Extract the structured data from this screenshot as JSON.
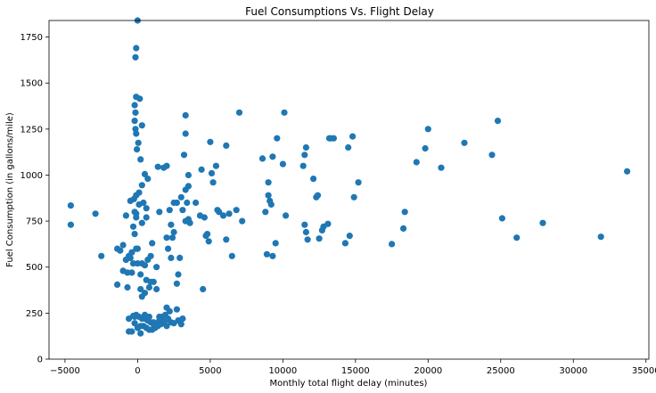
{
  "chart_data": {
    "type": "scatter",
    "title": "Fuel Consumptions Vs. Flight Delay",
    "xlabel": "Monthly total flight delay (minutes)",
    "ylabel": "Fuel Consumption (in gallons/mile)",
    "xlim": [
      -6100,
      35200
    ],
    "ylim": [
      0,
      1840
    ],
    "xticks": [
      -5000,
      0,
      5000,
      10000,
      15000,
      20000,
      25000,
      30000,
      35000
    ],
    "yticks": [
      0,
      250,
      500,
      750,
      1000,
      1250,
      1500,
      1750
    ],
    "xtick_labels": [
      "−5000",
      "0",
      "5000",
      "10000",
      "15000",
      "20000",
      "25000",
      "30000",
      "35000"
    ],
    "ytick_labels": [
      "0",
      "250",
      "500",
      "750",
      "1000",
      "1250",
      "1500",
      "1750"
    ],
    "grid": false,
    "marker_color": "#1f77b4",
    "points": [
      [
        0,
        1840
      ],
      [
        -100,
        1690
      ],
      [
        -150,
        1640
      ],
      [
        -100,
        1425
      ],
      [
        150,
        1415
      ],
      [
        -200,
        1380
      ],
      [
        -150,
        1340
      ],
      [
        -200,
        1295
      ],
      [
        300,
        1270
      ],
      [
        -150,
        1250
      ],
      [
        -100,
        1225
      ],
      [
        50,
        1175
      ],
      [
        -50,
        1140
      ],
      [
        200,
        1085
      ],
      [
        500,
        1005
      ],
      [
        700,
        980
      ],
      [
        300,
        945
      ],
      [
        100,
        905
      ],
      [
        -100,
        890
      ],
      [
        400,
        850
      ],
      [
        -250,
        870
      ],
      [
        -500,
        860
      ],
      [
        100,
        840
      ],
      [
        600,
        820
      ],
      [
        -200,
        800
      ],
      [
        -100,
        790
      ],
      [
        -100,
        770
      ],
      [
        -800,
        780
      ],
      [
        600,
        770
      ],
      [
        300,
        740
      ],
      [
        -300,
        720
      ],
      [
        -200,
        680
      ],
      [
        1000,
        630
      ],
      [
        -100,
        600
      ],
      [
        -400,
        580
      ],
      [
        -1400,
        600
      ],
      [
        -1200,
        590
      ],
      [
        -800,
        540
      ],
      [
        -600,
        560
      ],
      [
        -500,
        550
      ],
      [
        -300,
        520
      ],
      [
        0,
        520
      ],
      [
        300,
        520
      ],
      [
        500,
        510
      ],
      [
        700,
        540
      ],
      [
        900,
        560
      ],
      [
        1300,
        500
      ],
      [
        -700,
        470
      ],
      [
        -400,
        470
      ],
      [
        200,
        460
      ],
      [
        600,
        430
      ],
      [
        900,
        420
      ],
      [
        1100,
        420
      ],
      [
        1300,
        380
      ],
      [
        -700,
        390
      ],
      [
        -1400,
        405
      ],
      [
        -1000,
        480
      ],
      [
        200,
        380
      ],
      [
        500,
        360
      ],
      [
        800,
        390
      ],
      [
        300,
        340
      ],
      [
        -100,
        240
      ],
      [
        100,
        230
      ],
      [
        300,
        220
      ],
      [
        500,
        220
      ],
      [
        700,
        210
      ],
      [
        900,
        200
      ],
      [
        1100,
        200
      ],
      [
        1300,
        190
      ],
      [
        1500,
        210
      ],
      [
        1700,
        230
      ],
      [
        1900,
        240
      ],
      [
        2100,
        220
      ],
      [
        2300,
        200
      ],
      [
        2500,
        195
      ],
      [
        2800,
        210
      ],
      [
        3100,
        220
      ],
      [
        200,
        180
      ],
      [
        400,
        180
      ],
      [
        600,
        170
      ],
      [
        800,
        160
      ],
      [
        1000,
        160
      ],
      [
        1200,
        170
      ],
      [
        1400,
        180
      ],
      [
        1600,
        190
      ],
      [
        1800,
        200
      ],
      [
        2000,
        180
      ],
      [
        -200,
        195
      ],
      [
        0,
        170
      ],
      [
        200,
        140
      ],
      [
        -400,
        150
      ],
      [
        -600,
        220
      ],
      [
        -300,
        235
      ],
      [
        -600,
        150
      ],
      [
        -200,
        230
      ],
      [
        500,
        240
      ],
      [
        1100,
        190
      ],
      [
        2000,
        215
      ],
      [
        3000,
        190
      ],
      [
        2700,
        270
      ],
      [
        2200,
        260
      ],
      [
        2000,
        280
      ],
      [
        1500,
        230
      ],
      [
        800,
        230
      ],
      [
        -2500,
        560
      ],
      [
        -2900,
        790
      ],
      [
        -4600,
        730
      ],
      [
        -4600,
        835
      ],
      [
        -1000,
        620
      ],
      [
        -800,
        540
      ],
      [
        0,
        600
      ],
      [
        1400,
        1045
      ],
      [
        1800,
        1040
      ],
      [
        1500,
        800
      ],
      [
        2000,
        1050
      ],
      [
        2200,
        810
      ],
      [
        2300,
        730
      ],
      [
        2400,
        660
      ],
      [
        2500,
        690
      ],
      [
        2500,
        850
      ],
      [
        2700,
        850
      ],
      [
        2800,
        460
      ],
      [
        3000,
        880
      ],
      [
        3200,
        1110
      ],
      [
        3300,
        1325
      ],
      [
        3300,
        1225
      ],
      [
        3300,
        920
      ],
      [
        3400,
        850
      ],
      [
        3500,
        760
      ],
      [
        3600,
        740
      ],
      [
        3100,
        810
      ],
      [
        3300,
        750
      ],
      [
        3500,
        940
      ],
      [
        3500,
        1000
      ],
      [
        4000,
        850
      ],
      [
        4300,
        780
      ],
      [
        4400,
        1030
      ],
      [
        4600,
        770
      ],
      [
        4500,
        380
      ],
      [
        4800,
        680
      ],
      [
        5100,
        1010
      ],
      [
        5000,
        1180
      ],
      [
        5200,
        960
      ],
      [
        5400,
        1050
      ],
      [
        5500,
        810
      ],
      [
        5600,
        800
      ],
      [
        5900,
        780
      ],
      [
        6100,
        1160
      ],
      [
        6100,
        650
      ],
      [
        6300,
        790
      ],
      [
        6500,
        560
      ],
      [
        6800,
        810
      ],
      [
        7000,
        1340
      ],
      [
        7200,
        750
      ],
      [
        4900,
        640
      ],
      [
        4700,
        670
      ],
      [
        2900,
        550
      ],
      [
        2700,
        410
      ],
      [
        2100,
        600
      ],
      [
        2000,
        660
      ],
      [
        2300,
        550
      ],
      [
        8600,
        1090
      ],
      [
        8800,
        800
      ],
      [
        8900,
        570
      ],
      [
        9000,
        890
      ],
      [
        9000,
        960
      ],
      [
        9100,
        860
      ],
      [
        9200,
        840
      ],
      [
        9300,
        1100
      ],
      [
        9300,
        560
      ],
      [
        9500,
        630
      ],
      [
        9600,
        1200
      ],
      [
        10000,
        1060
      ],
      [
        10100,
        1340
      ],
      [
        10200,
        780
      ],
      [
        11400,
        1050
      ],
      [
        11500,
        1110
      ],
      [
        11600,
        1150
      ],
      [
        11500,
        730
      ],
      [
        11600,
        690
      ],
      [
        11700,
        650
      ],
      [
        12100,
        980
      ],
      [
        12300,
        880
      ],
      [
        12400,
        890
      ],
      [
        12500,
        655
      ],
      [
        12700,
        700
      ],
      [
        12800,
        720
      ],
      [
        13100,
        735
      ],
      [
        13200,
        1200
      ],
      [
        13300,
        1200
      ],
      [
        13500,
        1200
      ],
      [
        14300,
        630
      ],
      [
        14500,
        1150
      ],
      [
        14600,
        670
      ],
      [
        14800,
        1210
      ],
      [
        14900,
        880
      ],
      [
        15200,
        960
      ],
      [
        17500,
        625
      ],
      [
        18300,
        710
      ],
      [
        18400,
        800
      ],
      [
        19200,
        1070
      ],
      [
        19800,
        1145
      ],
      [
        20000,
        1250
      ],
      [
        20900,
        1040
      ],
      [
        22500,
        1175
      ],
      [
        24400,
        1110
      ],
      [
        24800,
        1295
      ],
      [
        25100,
        765
      ],
      [
        26100,
        660
      ],
      [
        27900,
        740
      ],
      [
        31900,
        665
      ],
      [
        33700,
        1020
      ]
    ]
  }
}
